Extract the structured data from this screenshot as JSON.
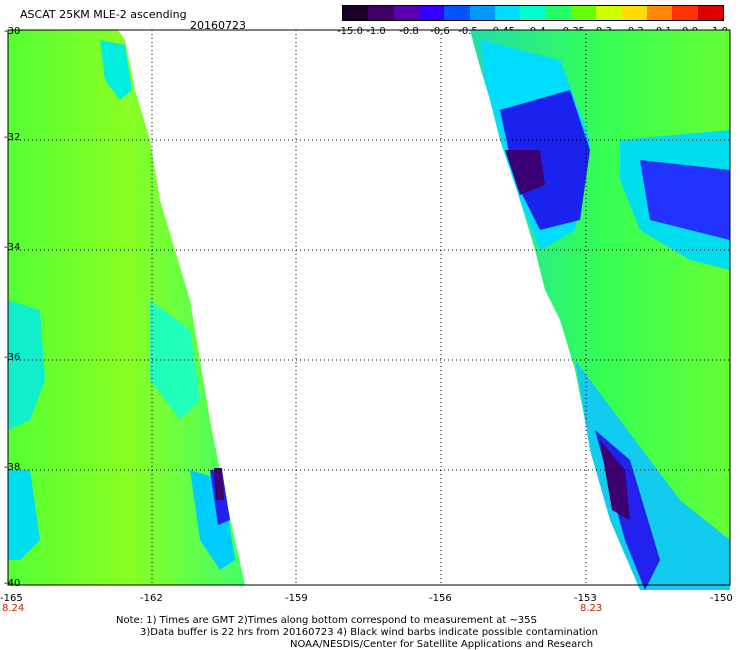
{
  "header": {
    "title": "ASCAT 25KM MLE-2 ascending",
    "date": "20160723"
  },
  "colorbar": {
    "labels": [
      "-15.0",
      "-1.0",
      "-0.8",
      "-0.6",
      "-0.5",
      "-0.45",
      "-0.4",
      "-0.35",
      "-0.3",
      "-0.2",
      "-0.1",
      "0.0",
      "1.0"
    ],
    "colors": [
      "#1a0026",
      "#3d0066",
      "#5a00b0",
      "#3300ff",
      "#0055ff",
      "#0099ff",
      "#00ddff",
      "#00ffcc",
      "#22ff66",
      "#66ff00",
      "#ccff00",
      "#ffdd00",
      "#ff8800",
      "#ff3300",
      "#dd0000"
    ]
  },
  "axes": {
    "lat_ticks": [
      "-30",
      "-32",
      "-34",
      "-36",
      "-38",
      "-40"
    ],
    "lon_ticks": [
      "-165",
      "-162",
      "-159",
      "-156",
      "-153",
      "-150"
    ],
    "time_labels": [
      "8.24",
      "8.23"
    ]
  },
  "notes": {
    "line1": "Note: 1) Times are GMT 2)Times along bottom correspond to measurement at ~35S",
    "line2": "3)Data buffer is 22 hrs from 20160723 4) Black wind barbs indicate possible contamination",
    "line3": "NOAA/NESDIS/Center for Satellite Applications and Research"
  }
}
